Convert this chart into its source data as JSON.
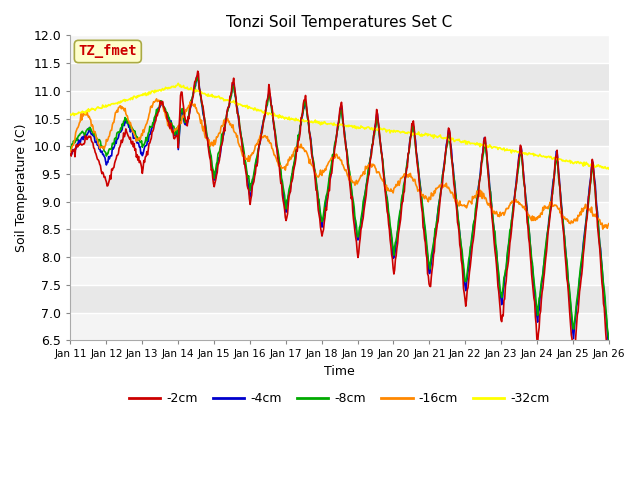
{
  "title": "Tonzi Soil Temperatures Set C",
  "xlabel": "Time",
  "ylabel": "Soil Temperature (C)",
  "ylim": [
    6.5,
    12.0
  ],
  "yticks": [
    6.5,
    7.0,
    7.5,
    8.0,
    8.5,
    9.0,
    9.5,
    10.0,
    10.5,
    11.0,
    11.5,
    12.0
  ],
  "annotation_label": "TZ_fmet",
  "annotation_box_color": "#ffffcc",
  "annotation_text_color": "#cc0000",
  "annotation_border_color": "#aaaa44",
  "plot_bg_color": "#e8e8e8",
  "stripe_color": "#d0d0d0",
  "line_colors": {
    "-2cm": "#cc0000",
    "-4cm": "#0000cc",
    "-8cm": "#00aa00",
    "-16cm": "#ff8800",
    "-32cm": "#ffff00"
  },
  "line_width": 1.2,
  "xtick_labels": [
    "Jan 11",
    "Jan 12",
    "Jan 13",
    "Jan 14",
    "Jan 15",
    "Jan 16",
    "Jan 17",
    "Jan 18",
    "Jan 19",
    "Jan 20",
    "Jan 21",
    "Jan 22",
    "Jan 23",
    "Jan 24",
    "Jan 25",
    "Jan 26"
  ]
}
